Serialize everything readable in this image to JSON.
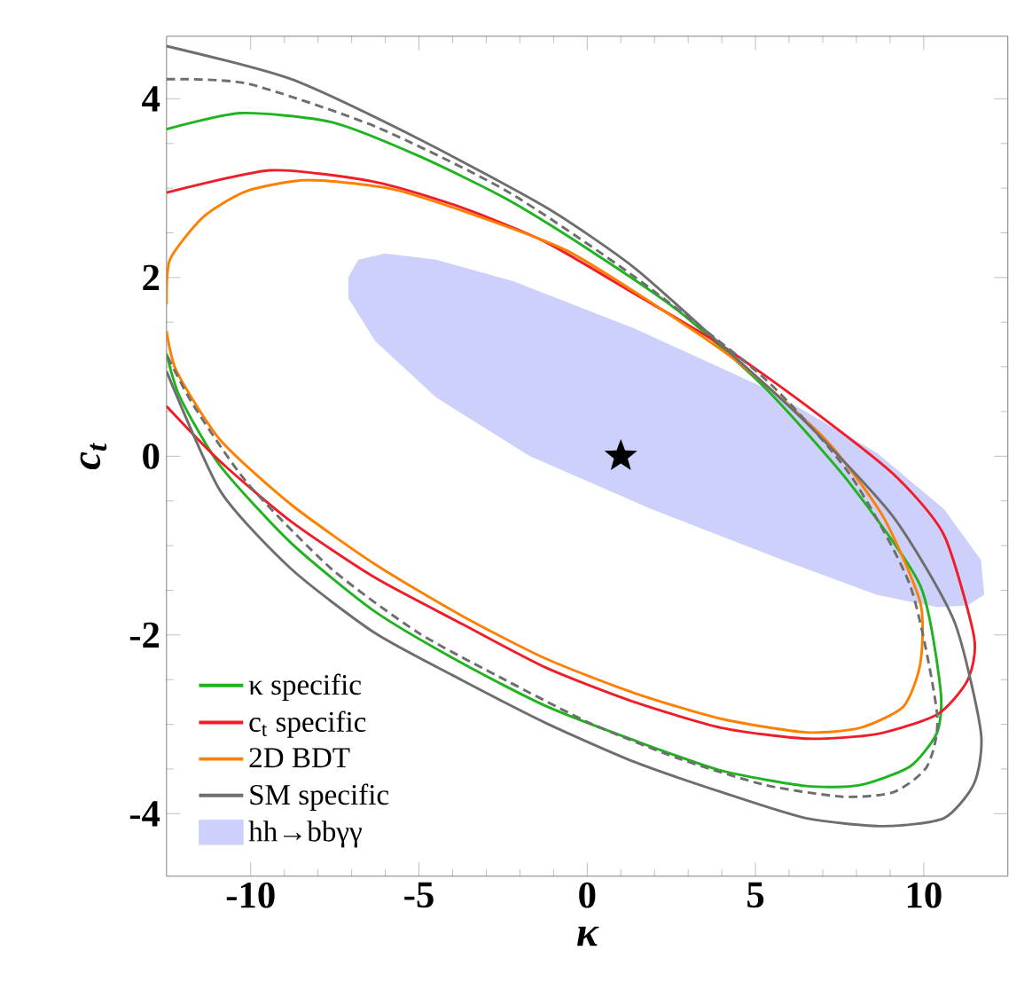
{
  "chart_data": {
    "type": "line",
    "xlabel": "κ",
    "ylabel": "c$_{t}$",
    "xlim": [
      -12.5,
      12.5
    ],
    "ylim": [
      -4.7,
      4.7
    ],
    "xticks": [
      -10,
      -5,
      0,
      5,
      10
    ],
    "yticks": [
      -4,
      -2,
      0,
      2,
      4
    ],
    "legend": "bottom left",
    "series": [
      {
        "type": "area",
        "name": "hh→bbγγ",
        "color": "#ccd0fa",
        "x": [
          -7.1,
          -6.8,
          -6.0,
          -4.5,
          -2.2,
          1.4,
          5.3,
          8.6,
          10.6,
          11.7,
          11.8,
          11.3,
          10.4,
          8.6,
          5.8,
          1.9,
          -1.7,
          -4.5,
          -6.3,
          -7.1
        ],
        "values": [
          2.0,
          2.2,
          2.27,
          2.2,
          1.96,
          1.43,
          0.76,
          0.04,
          -0.59,
          -1.16,
          -1.55,
          -1.67,
          -1.69,
          -1.55,
          -1.16,
          -0.59,
          0.0,
          0.66,
          1.29,
          1.77
        ]
      },
      {
        "name": "κ specific",
        "color": "#1fb41f",
        "x": [
          -12.5,
          -10.3,
          -7.6,
          -5.0,
          -2.4,
          0.1,
          2.7,
          5.3,
          7.8,
          9.9,
          10.5,
          10.4,
          9.6,
          8.1,
          6.5,
          4.0,
          1.4,
          -1.2,
          -3.7,
          -6.3,
          -8.8,
          -10.9,
          -12.1,
          -12.5
        ],
        "values": [
          3.66,
          3.84,
          3.74,
          3.36,
          2.88,
          2.3,
          1.63,
          0.76,
          -0.3,
          -1.45,
          -2.61,
          -3.09,
          -3.47,
          -3.68,
          -3.69,
          -3.52,
          -3.18,
          -2.8,
          -2.32,
          -1.74,
          -0.97,
          -0.11,
          0.66,
          1.15
        ]
      },
      {
        "name": "c$_{t}$ specific",
        "color": "#f01c28",
        "x": [
          -12.5,
          -9.4,
          -6.3,
          -3.7,
          -1.2,
          1.4,
          4.0,
          6.5,
          9.1,
          10.6,
          11.5,
          11.3,
          10.4,
          8.6,
          6.5,
          4.0,
          1.4,
          -1.2,
          -3.7,
          -6.3,
          -8.8,
          -10.9,
          -12.5
        ],
        "values": [
          2.95,
          3.2,
          3.07,
          2.78,
          2.39,
          1.82,
          1.24,
          0.57,
          -0.2,
          -0.88,
          -2.03,
          -2.51,
          -2.89,
          -3.11,
          -3.16,
          -3.04,
          -2.75,
          -2.37,
          -1.88,
          -1.36,
          -0.73,
          -0.06,
          0.56
        ]
      },
      {
        "name": "2D BDT",
        "color": "#ff8000",
        "x": [
          -12.5,
          -12.4,
          -11.4,
          -10.1,
          -8.3,
          -5.8,
          -3.2,
          -0.6,
          1.9,
          4.5,
          7.1,
          8.8,
          9.9,
          9.9,
          9.4,
          8.1,
          6.5,
          4.0,
          1.4,
          -1.2,
          -3.7,
          -6.3,
          -8.8,
          -10.9,
          -12.2,
          -12.5
        ],
        "values": [
          1.7,
          2.2,
          2.68,
          2.97,
          3.09,
          2.99,
          2.68,
          2.3,
          1.72,
          1.05,
          0.18,
          -0.68,
          -1.64,
          -2.32,
          -2.8,
          -3.04,
          -3.09,
          -2.94,
          -2.65,
          -2.27,
          -1.79,
          -1.21,
          -0.54,
          0.18,
          0.95,
          1.4
        ]
      },
      {
        "name": "SM specific",
        "color": "#6e6e6e",
        "x": [
          -12.5,
          -8.8,
          -5.0,
          -1.2,
          1.4,
          4.0,
          6.5,
          9.1,
          10.9,
          11.7,
          11.5,
          10.6,
          8.8,
          6.5,
          4.0,
          1.4,
          -1.2,
          -3.7,
          -6.3,
          -8.8,
          -10.9,
          -12.5
        ],
        "values": [
          4.59,
          4.22,
          3.55,
          2.78,
          2.11,
          1.24,
          0.38,
          -0.68,
          -1.84,
          -3.09,
          -3.66,
          -4.05,
          -4.14,
          -4.05,
          -3.76,
          -3.42,
          -2.99,
          -2.51,
          -1.98,
          -1.26,
          -0.39,
          0.95
        ]
      },
      {
        "line_style": "dashed",
        "color": "#6e6e6e",
        "x": [
          -12.5,
          -10.1,
          -6.3,
          -2.4,
          1.4,
          5.3,
          7.8,
          9.6,
          10.4,
          10.1,
          9.1,
          7.6,
          5.3,
          2.7,
          0.1,
          -2.4,
          -5.0,
          -7.6,
          -10.1,
          -11.7,
          -12.5
        ],
        "values": [
          4.22,
          4.17,
          3.69,
          2.97,
          2.01,
          0.86,
          -0.2,
          -1.45,
          -2.89,
          -3.47,
          -3.76,
          -3.81,
          -3.68,
          -3.38,
          -2.99,
          -2.51,
          -1.98,
          -1.26,
          -0.3,
          0.57,
          1.14
        ]
      },
      {
        "type": "scatter",
        "marker": "star",
        "color": "#000000",
        "x": [
          1
        ],
        "values": [
          0
        ]
      }
    ]
  }
}
